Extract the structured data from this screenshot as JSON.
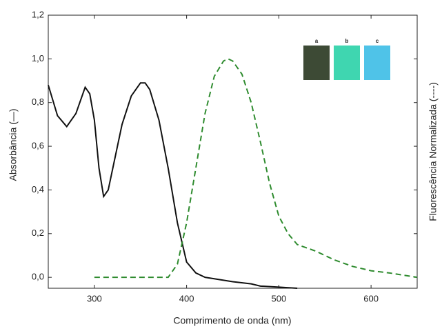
{
  "chart_data": {
    "type": "line",
    "x_label": "Comprimento de onda (nm)",
    "y_label": "Absorbância (—)",
    "y2_label": "Fluorescência Normalizada (----)",
    "inset_labels": [
      "a",
      "b",
      "c"
    ],
    "xlim": [
      250,
      650
    ],
    "xticks": [
      300,
      400,
      500,
      600
    ],
    "ylim": [
      -0.05,
      1.2
    ],
    "yticks": [
      {
        "value": 0.0,
        "label": "0,0"
      },
      {
        "value": 0.2,
        "label": "0,2"
      },
      {
        "value": 0.4,
        "label": "0,4"
      },
      {
        "value": 0.6,
        "label": "0,6"
      },
      {
        "value": 0.8,
        "label": "0,8"
      },
      {
        "value": 1.0,
        "label": "1,0"
      },
      {
        "value": 1.2,
        "label": "1,2"
      }
    ],
    "series": [
      {
        "color": "#111111",
        "dash": false,
        "x": [
          250,
          260,
          270,
          280,
          290,
          295,
          300,
          305,
          310,
          315,
          320,
          330,
          340,
          350,
          355,
          360,
          370,
          380,
          390,
          400,
          410,
          420,
          450,
          470,
          480,
          500,
          520
        ],
        "values": [
          0.88,
          0.74,
          0.69,
          0.75,
          0.87,
          0.84,
          0.72,
          0.5,
          0.37,
          0.4,
          0.5,
          0.7,
          0.83,
          0.89,
          0.89,
          0.86,
          0.72,
          0.5,
          0.25,
          0.07,
          0.02,
          0.0,
          -0.02,
          -0.03,
          -0.04,
          -0.045,
          -0.05
        ]
      },
      {
        "color": "#2e8b2e",
        "dash": true,
        "x": [
          300,
          380,
          390,
          400,
          410,
          420,
          430,
          440,
          445,
          450,
          460,
          470,
          480,
          490,
          500,
          510,
          520,
          540,
          560,
          580,
          600,
          620,
          650
        ],
        "values": [
          0.0,
          0.0,
          0.06,
          0.25,
          0.5,
          0.75,
          0.92,
          0.99,
          1.0,
          0.99,
          0.93,
          0.8,
          0.62,
          0.43,
          0.28,
          0.2,
          0.15,
          0.12,
          0.08,
          0.05,
          0.03,
          0.02,
          0.0
        ]
      }
    ]
  }
}
